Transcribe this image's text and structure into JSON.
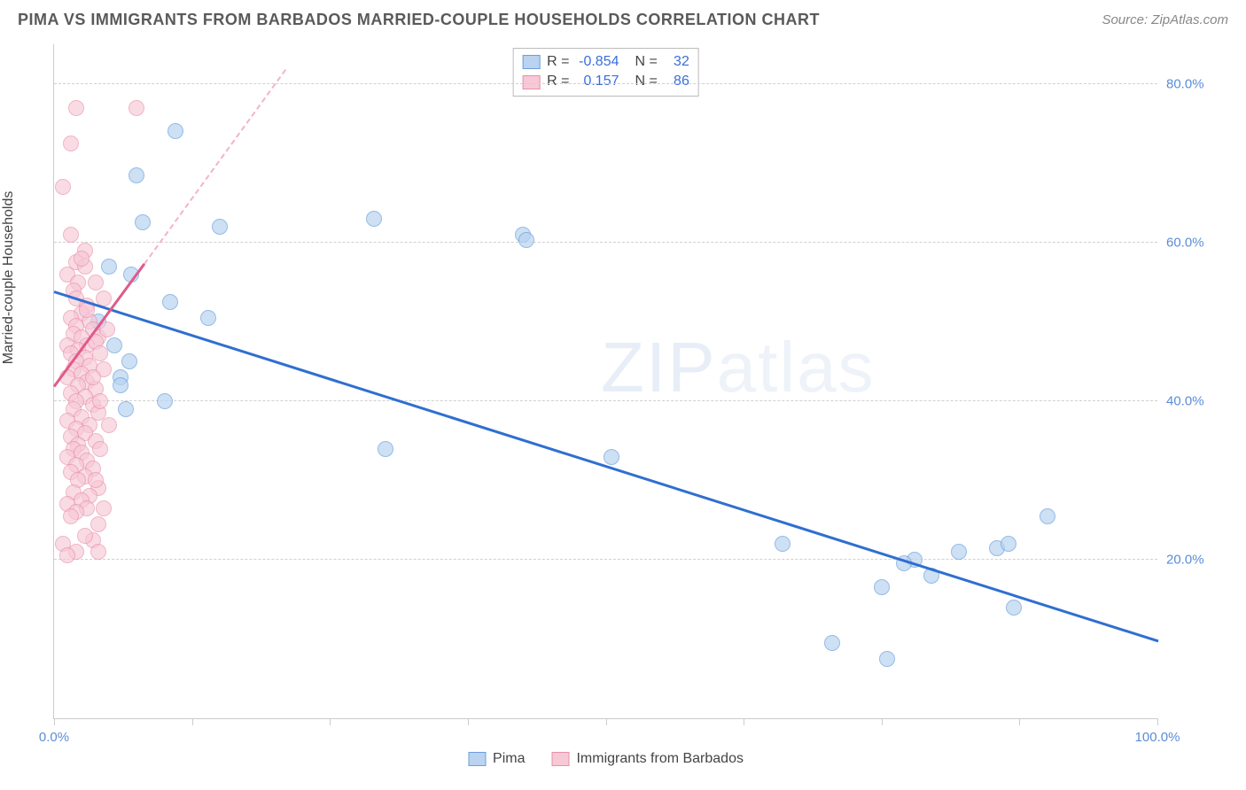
{
  "header": {
    "title": "PIMA VS IMMIGRANTS FROM BARBADOS MARRIED-COUPLE HOUSEHOLDS CORRELATION CHART",
    "source": "Source: ZipAtlas.com"
  },
  "chart": {
    "type": "scatter",
    "y_axis_label": "Married-couple Households",
    "background_color": "#ffffff",
    "grid_color": "#d0d0d0",
    "axis_color": "#cccccc",
    "tick_label_color": "#5b8dd6",
    "tick_fontsize": 15,
    "axis_label_fontsize": 16,
    "xlim": [
      0,
      100
    ],
    "ylim": [
      0,
      85
    ],
    "x_ticks": [
      0,
      12.5,
      25,
      37.5,
      50,
      62.5,
      75,
      87.5,
      100
    ],
    "x_tick_labels": {
      "0": "0.0%",
      "100": "100.0%"
    },
    "y_gridlines": [
      20,
      40,
      60,
      80
    ],
    "y_tick_labels": {
      "20": "20.0%",
      "40": "40.0%",
      "60": "60.0%",
      "80": "80.0%"
    },
    "marker_size": 18,
    "series": [
      {
        "name": "Pima",
        "fill_color": "#b9d3f0",
        "stroke_color": "#6a9fde",
        "fill_opacity": 0.7,
        "trend": {
          "x1": 0,
          "y1": 54,
          "x2": 100,
          "y2": 10,
          "color": "#2f6fd0",
          "width": 3,
          "dashed_extension": false
        },
        "points": [
          [
            11,
            74
          ],
          [
            7.5,
            68.5
          ],
          [
            8,
            62.5
          ],
          [
            15,
            62
          ],
          [
            29,
            63
          ],
          [
            10.5,
            52.5
          ],
          [
            14,
            50.5
          ],
          [
            6.8,
            45
          ],
          [
            6,
            43
          ],
          [
            6,
            42
          ],
          [
            10,
            40
          ],
          [
            6.5,
            39
          ],
          [
            30,
            34
          ],
          [
            50.5,
            33
          ],
          [
            66,
            22
          ],
          [
            70.5,
            9.5
          ],
          [
            75,
            16.5
          ],
          [
            75.5,
            7.5
          ],
          [
            78,
            20
          ],
          [
            79.5,
            18
          ],
          [
            77,
            19.5
          ],
          [
            82,
            21
          ],
          [
            85.5,
            21.5
          ],
          [
            86.5,
            22
          ],
          [
            87,
            14
          ],
          [
            90,
            25.5
          ],
          [
            7,
            56
          ],
          [
            4,
            50
          ],
          [
            5.5,
            47
          ],
          [
            42.5,
            61
          ],
          [
            42.8,
            60.3
          ],
          [
            5,
            57
          ]
        ]
      },
      {
        "name": "Immigrants from Barbados",
        "fill_color": "#f7c8d6",
        "stroke_color": "#e98fac",
        "fill_opacity": 0.65,
        "trend": {
          "x1": 0,
          "y1": 42,
          "x2": 8.2,
          "y2": 57.5,
          "color": "#e05a8a",
          "width": 3,
          "dashed_extension": true,
          "dash_x2": 21,
          "dash_y2": 82,
          "dash_color": "#f3b3c9"
        },
        "points": [
          [
            2,
            77
          ],
          [
            7.5,
            77
          ],
          [
            1.5,
            72.5
          ],
          [
            0.8,
            67
          ],
          [
            1.5,
            61
          ],
          [
            2.8,
            59
          ],
          [
            2,
            57.5
          ],
          [
            2.8,
            57
          ],
          [
            1.2,
            56
          ],
          [
            2.2,
            55
          ],
          [
            1.8,
            54
          ],
          [
            2,
            53
          ],
          [
            3,
            52
          ],
          [
            2.5,
            51
          ],
          [
            1.5,
            50.5
          ],
          [
            3.2,
            50
          ],
          [
            2,
            49.5
          ],
          [
            3.5,
            49
          ],
          [
            1.8,
            48.5
          ],
          [
            2.5,
            48
          ],
          [
            4,
            48
          ],
          [
            1.2,
            47
          ],
          [
            3,
            47
          ],
          [
            2.2,
            46.5
          ],
          [
            3.8,
            47.5
          ],
          [
            1.5,
            46
          ],
          [
            2.8,
            45.5
          ],
          [
            4.2,
            46
          ],
          [
            2,
            45
          ],
          [
            3.2,
            44.5
          ],
          [
            1.8,
            44
          ],
          [
            2.5,
            43.5
          ],
          [
            4.5,
            44
          ],
          [
            1.2,
            43
          ],
          [
            3,
            42.5
          ],
          [
            2.2,
            42
          ],
          [
            3.8,
            41.5
          ],
          [
            1.5,
            41
          ],
          [
            2.8,
            40.5
          ],
          [
            2,
            40
          ],
          [
            3.5,
            39.5
          ],
          [
            1.8,
            39
          ],
          [
            4,
            38.5
          ],
          [
            2.5,
            38
          ],
          [
            1.2,
            37.5
          ],
          [
            3.2,
            37
          ],
          [
            2,
            36.5
          ],
          [
            2.8,
            36
          ],
          [
            1.5,
            35.5
          ],
          [
            3.8,
            35
          ],
          [
            2.2,
            34.5
          ],
          [
            1.8,
            34
          ],
          [
            4.2,
            34
          ],
          [
            2.5,
            33.5
          ],
          [
            1.2,
            33
          ],
          [
            3,
            32.5
          ],
          [
            2,
            32
          ],
          [
            3.5,
            31.5
          ],
          [
            1.5,
            31
          ],
          [
            2.8,
            30.5
          ],
          [
            2.2,
            30
          ],
          [
            4,
            29
          ],
          [
            1.8,
            28.5
          ],
          [
            3.2,
            28
          ],
          [
            2.5,
            27.5
          ],
          [
            1.2,
            27
          ],
          [
            3,
            26.5
          ],
          [
            2,
            26
          ],
          [
            4.5,
            26.5
          ],
          [
            1.5,
            25.5
          ],
          [
            4,
            24.5
          ],
          [
            3.5,
            22.5
          ],
          [
            0.8,
            22
          ],
          [
            2,
            21
          ],
          [
            1.2,
            20.5
          ],
          [
            2.5,
            58
          ],
          [
            3.8,
            55
          ],
          [
            4.5,
            53
          ],
          [
            3,
            51.5
          ],
          [
            4.8,
            49
          ],
          [
            3.5,
            43
          ],
          [
            4.2,
            40
          ],
          [
            5,
            37
          ],
          [
            3.8,
            30
          ],
          [
            2.8,
            23
          ],
          [
            4,
            21
          ]
        ]
      }
    ],
    "stats_box": {
      "rows": [
        {
          "swatch_fill": "#b9d3f0",
          "swatch_border": "#6a9fde",
          "r_label": "R =",
          "r_value": "-0.854",
          "n_label": "N =",
          "n_value": "32"
        },
        {
          "swatch_fill": "#f7c8d6",
          "swatch_border": "#e98fac",
          "r_label": "R =",
          "r_value": "0.157",
          "n_label": "N =",
          "n_value": "86"
        }
      ]
    },
    "bottom_legend": [
      {
        "swatch_fill": "#b9d3f0",
        "swatch_border": "#6a9fde",
        "label": "Pima"
      },
      {
        "swatch_fill": "#f7c8d6",
        "swatch_border": "#e98fac",
        "label": "Immigrants from Barbados"
      }
    ],
    "watermark": {
      "part1": "ZIP",
      "part2": "atlas"
    }
  }
}
